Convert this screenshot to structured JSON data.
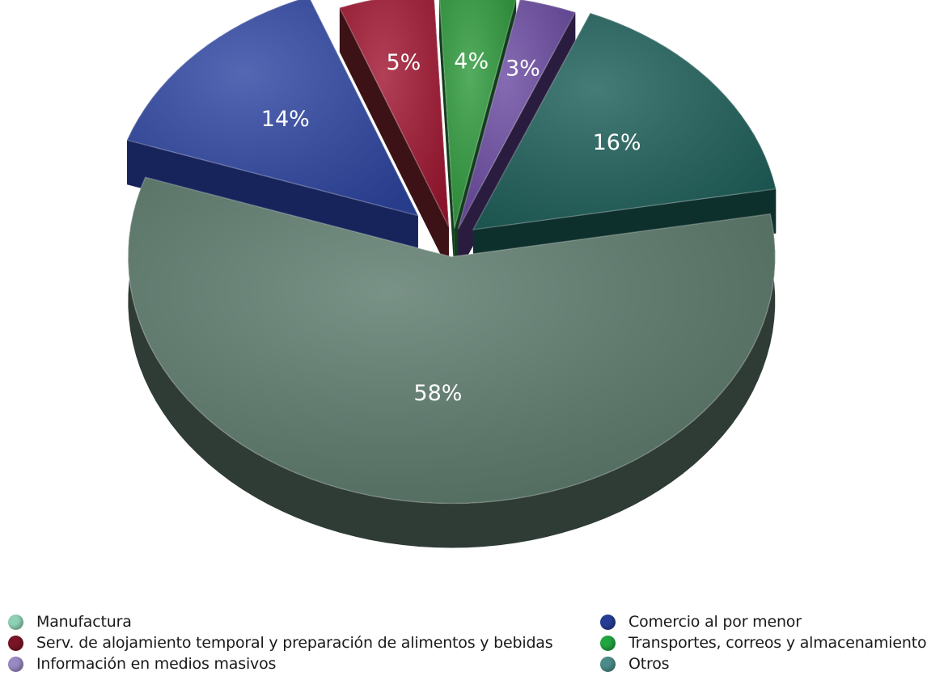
{
  "chart_data": {
    "type": "pie",
    "title": "",
    "slices": [
      {
        "label": "Manufactura",
        "value": 58,
        "display": "58%",
        "color": "#5c7a6c",
        "side": "#2f3b35",
        "legend_color": "#8fd1b5"
      },
      {
        "label": "Comercio al por menor",
        "value": 14,
        "display": "14%",
        "color": "#2e46a3",
        "side": "#17245c",
        "legend_color": "#253d96"
      },
      {
        "label": "Serv. de alojamiento temporal y preparación de alimentos y bebidas",
        "value": 5,
        "display": "5%",
        "color": "#a11631",
        "side": "#3c1216",
        "legend_color": "#7a1525"
      },
      {
        "label": "Transportes, correos y almacenamiento",
        "value": 4,
        "display": "4%",
        "color": "#2e9a3c",
        "side": "#123d1c",
        "legend_color": "#21a540"
      },
      {
        "label": "Información en medios masivos",
        "value": 3,
        "display": "3%",
        "color": "#6b4ba2",
        "side": "#2a1c3f",
        "legend_color": "#9a88c2"
      },
      {
        "label": "Otros",
        "value": 16,
        "display": "16%",
        "color": "#1d5f5a",
        "side": "#0e302c",
        "legend_color": "#4b8c88"
      }
    ],
    "legend": {
      "placement": "bottom",
      "left": [
        "Manufactura",
        "Serv. de alojamiento temporal y preparación de alimentos y bebidas",
        "Información en medios masivos"
      ],
      "right": [
        "Comercio al por menor",
        "Transportes, correos y almacenamiento",
        "Otros"
      ]
    }
  }
}
